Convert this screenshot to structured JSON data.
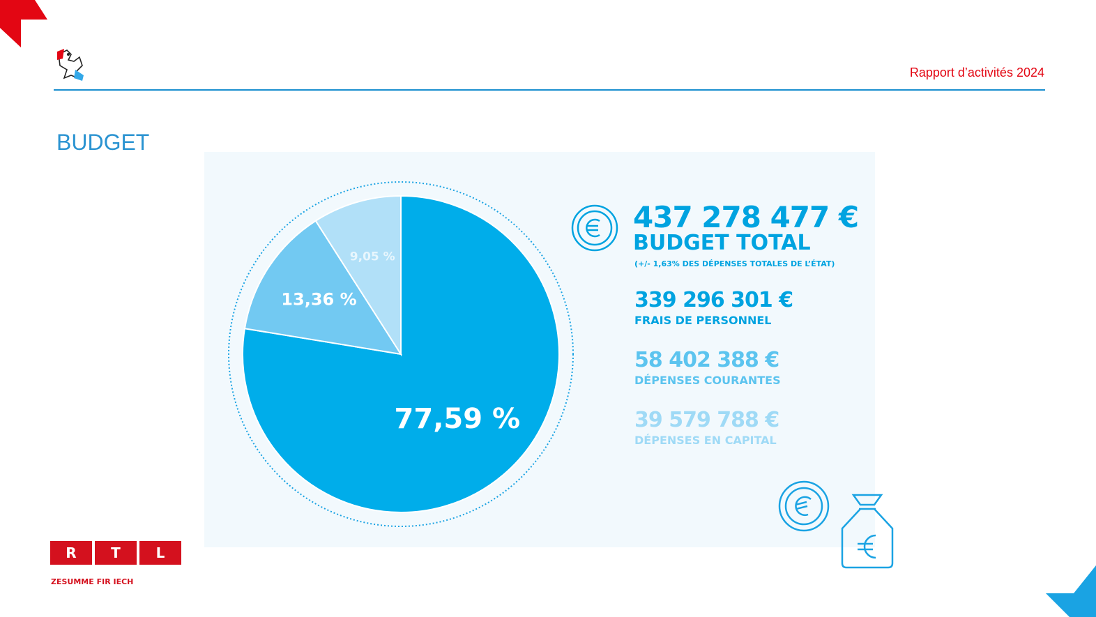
{
  "header": {
    "report_title": "Rapport d’activités 2024"
  },
  "section": {
    "title": "BUDGET"
  },
  "summary": {
    "total_amount": "437 278 477 €",
    "total_label": "BUDGET TOTAL",
    "total_note": "(+/- 1,63% DES DÉPENSES TOTALES DE L’ÉTAT)",
    "items": [
      {
        "amount": "339 296 301 €",
        "label": "FRAIS DE PERSONNEL"
      },
      {
        "amount": "58 402 388 €",
        "label": "DÉPENSES COURANTES"
      },
      {
        "amount": "39 579 788 €",
        "label": "DÉPENSES EN CAPITAL"
      }
    ]
  },
  "chart_data": {
    "type": "pie",
    "slices": [
      {
        "value": 77.59,
        "label": "77,59 %",
        "color": "#00adea"
      },
      {
        "value": 13.36,
        "label": "13,36 %",
        "color": "#72c9f2"
      },
      {
        "value": 9.05,
        "label": "9,05 %",
        "color": "#b1e0f8"
      }
    ]
  },
  "footer": {
    "logo_letters": [
      "R",
      "T",
      "L"
    ],
    "tagline": "ZESUMME FIR IECH"
  },
  "colors": {
    "brand_red": "#e30613",
    "accent_blue": "#00a3e0",
    "panel_bg": "#f2f9fd"
  },
  "icons": {
    "coin": "euro-coin-icon",
    "bag": "money-bag-icon",
    "crest": "lion-crest-icon"
  }
}
